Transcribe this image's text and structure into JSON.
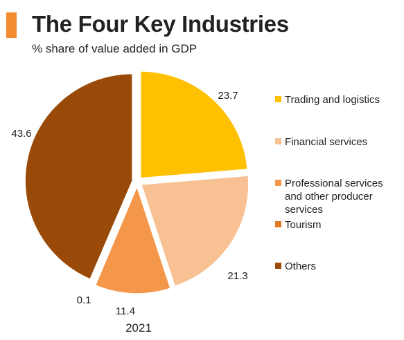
{
  "header": {
    "title": "The Four Key Industries",
    "subtitle": "% share of value added in GDP",
    "accent_color": "#F28A30"
  },
  "chart_data": {
    "type": "pie",
    "title": "The Four Key Industries",
    "subtitle": "% share of value added in GDP",
    "caption": "2021",
    "legend_position": "right",
    "slices": [
      {
        "label": "Trading and logistics",
        "value": 23.7,
        "display": "23.7",
        "color": "#FFC000"
      },
      {
        "label": "Financial services",
        "value": 21.3,
        "display": "21.3",
        "color": "#F8C193"
      },
      {
        "label": "Professional services and other producer services",
        "value": 11.4,
        "display": "11.4",
        "color": "#F4974B"
      },
      {
        "label": "Tourism",
        "value": 0.1,
        "display": "0.1",
        "color": "#E07B22"
      },
      {
        "label": "Others",
        "value": 43.6,
        "display": "43.6",
        "color": "#9A4A08"
      }
    ]
  }
}
